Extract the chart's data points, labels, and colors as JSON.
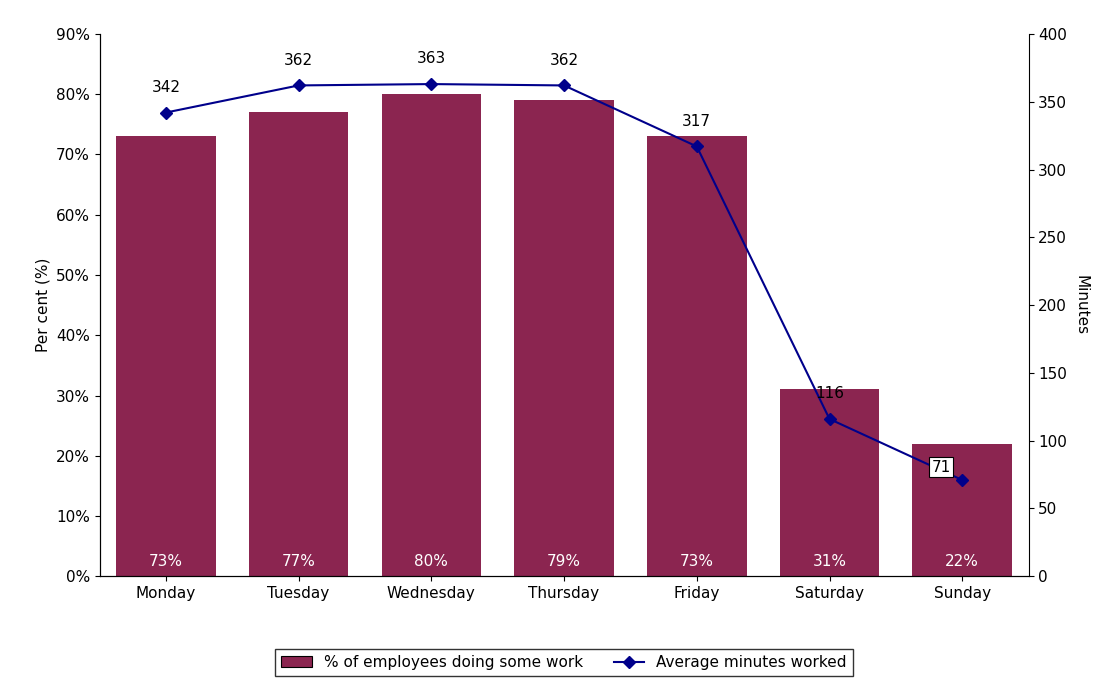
{
  "days": [
    "Monday",
    "Tuesday",
    "Wednesday",
    "Thursday",
    "Friday",
    "Saturday",
    "Sunday"
  ],
  "bar_values": [
    73,
    77,
    80,
    79,
    73,
    31,
    22
  ],
  "bar_labels": [
    "73%",
    "77%",
    "80%",
    "79%",
    "73%",
    "31%",
    "22%"
  ],
  "line_values": [
    342,
    362,
    363,
    362,
    317,
    116,
    71
  ],
  "bar_color": "#8B2550",
  "line_color": "#00008B",
  "ylabel_left": "Per cent (%)",
  "ylabel_right": "Minutes",
  "ylim_left": [
    0,
    90
  ],
  "ylim_right": [
    0,
    400
  ],
  "yticks_left": [
    0,
    10,
    20,
    30,
    40,
    50,
    60,
    70,
    80,
    90
  ],
  "ytick_labels_left": [
    "0%",
    "10%",
    "20%",
    "30%",
    "40%",
    "50%",
    "60%",
    "70%",
    "80%",
    "90%"
  ],
  "yticks_right": [
    0,
    50,
    100,
    150,
    200,
    250,
    300,
    350,
    400
  ],
  "legend_bar_label": "% of employees doing some work",
  "legend_line_label": "Average minutes worked",
  "background_color": "#ffffff",
  "bar_label_fontsize": 11,
  "line_label_fontsize": 11,
  "axis_fontsize": 11,
  "legend_fontsize": 11,
  "bar_width": 0.75,
  "figsize": [
    11.06,
    6.78
  ],
  "dpi": 100
}
